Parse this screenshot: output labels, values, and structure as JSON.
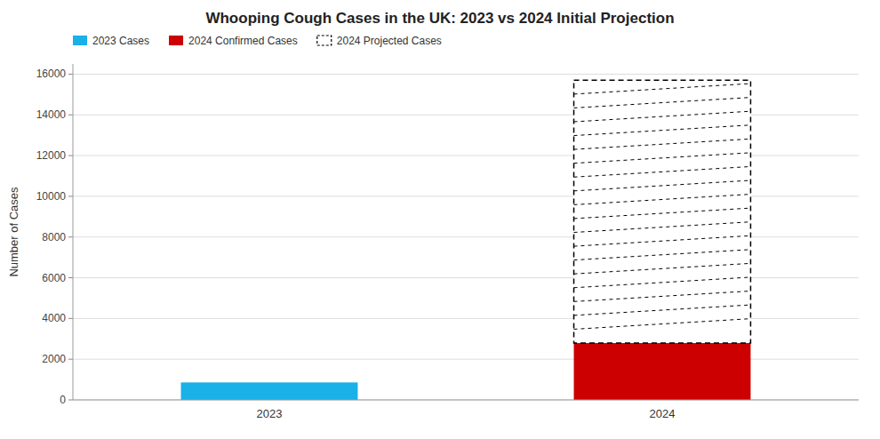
{
  "chart_data": {
    "type": "bar",
    "stacked": true,
    "title": "Whooping Cough Cases in the UK: 2023 vs 2024 Initial Projection",
    "ylabel": "Number of Cases",
    "categories": [
      "2023",
      "2024"
    ],
    "series": [
      {
        "name": "2023 Cases",
        "color": "#1ab0e8",
        "values": [
          858,
          null
        ]
      },
      {
        "name": "2024 Confirmed Cases",
        "color": "#cc0000",
        "values": [
          null,
          2793
        ]
      },
      {
        "name": "2024 Projected Cases",
        "color": "white",
        "line_style": "dashed",
        "values": [
          null,
          12907
        ]
      }
    ],
    "ylim": [
      0,
      16500
    ],
    "yticks": [
      0,
      2000,
      4000,
      6000,
      8000,
      10000,
      12000,
      14000,
      16000
    ],
    "grid": true,
    "legend": "upper left"
  }
}
